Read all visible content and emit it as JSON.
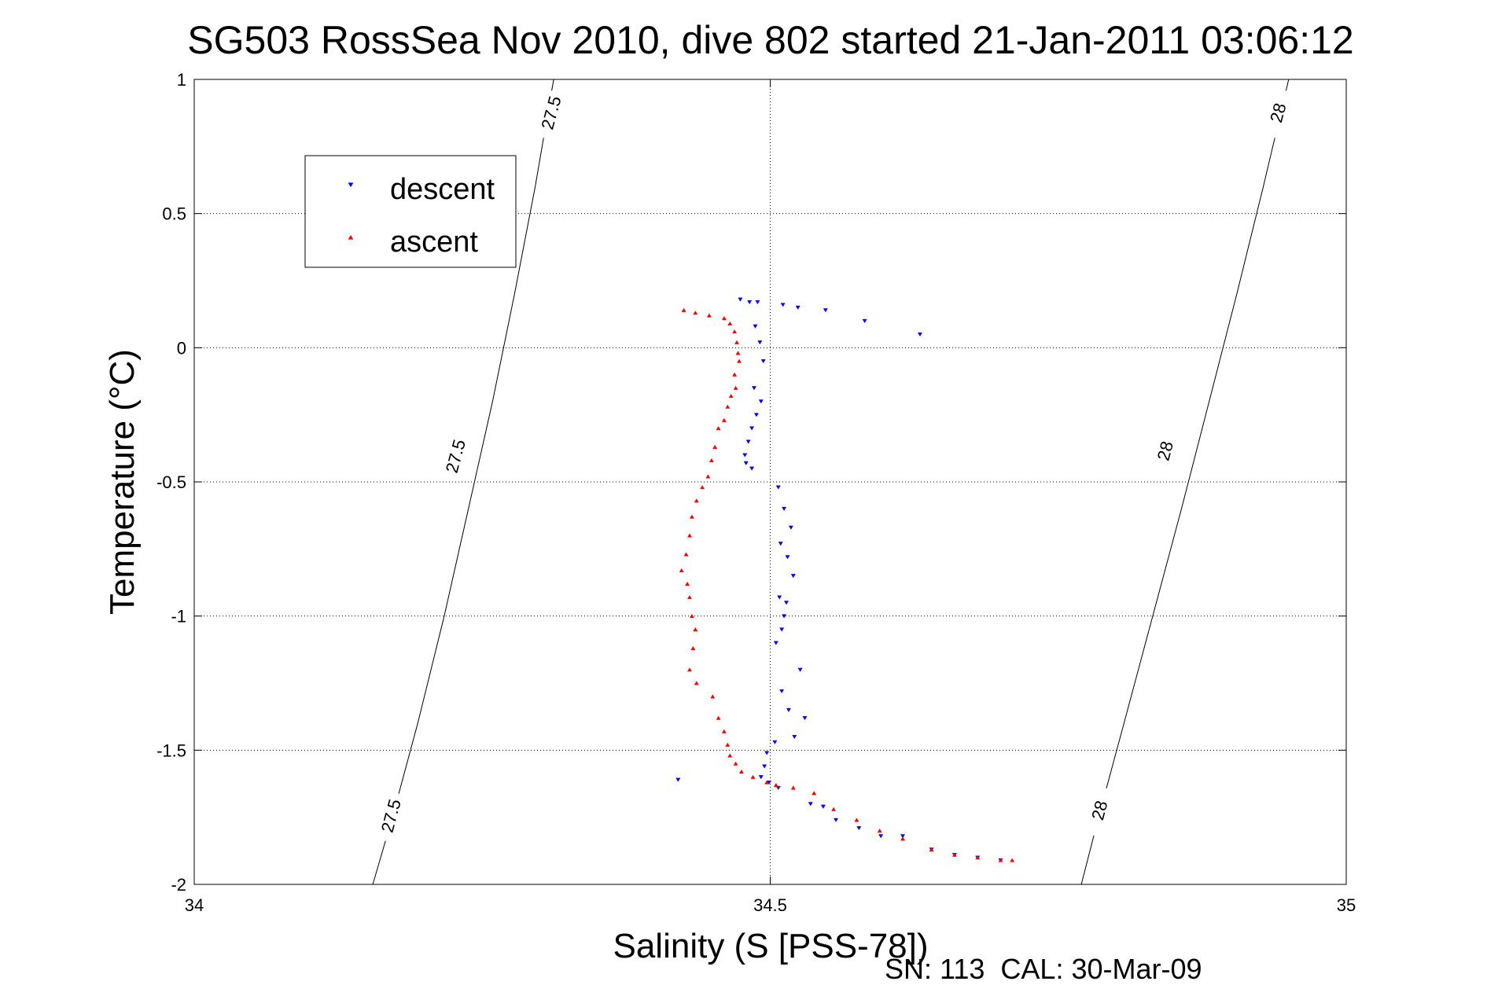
{
  "chart_data": {
    "type": "scatter",
    "title": "SG503 RossSea Nov 2010, dive 802 started 21-Jan-2011 03:06:12",
    "xlabel": "Salinity (S [PSS-78])",
    "ylabel": "Temperature (°C)",
    "footer": "SN: 113  CAL: 30-Mar-09",
    "xlim": [
      34,
      35
    ],
    "ylim": [
      -2,
      1
    ],
    "xticks": [
      34,
      34.5,
      35
    ],
    "xtick_labels": [
      "34",
      "34.5",
      "35"
    ],
    "yticks": [
      -2,
      -1.5,
      -1,
      -0.5,
      0,
      0.5,
      1
    ],
    "ytick_labels": [
      "-2",
      "-1.5",
      "-1",
      "-0.5",
      "0",
      "0.5",
      "1"
    ],
    "grid": true,
    "legend_position": "top-left",
    "isopycnals": [
      {
        "level": "27.5",
        "points": [
          [
            34.155,
            -2.0
          ],
          [
            34.172,
            -1.75
          ],
          [
            34.194,
            -1.4
          ],
          [
            34.217,
            -1.0
          ],
          [
            34.238,
            -0.6
          ],
          [
            34.259,
            -0.2
          ],
          [
            34.278,
            0.2
          ],
          [
            34.296,
            0.6
          ],
          [
            34.312,
            1.0
          ]
        ],
        "labels": [
          [
            34.171,
            -1.75
          ],
          [
            34.227,
            -0.41
          ],
          [
            34.31,
            0.87
          ]
        ]
      },
      {
        "level": "28",
        "points": [
          [
            34.77,
            -2.0
          ],
          [
            34.785,
            -1.75
          ],
          [
            34.807,
            -1.4
          ],
          [
            34.832,
            -1.0
          ],
          [
            34.857,
            -0.6
          ],
          [
            34.881,
            -0.2
          ],
          [
            34.905,
            0.2
          ],
          [
            34.928,
            0.6
          ],
          [
            34.95,
            1.0
          ]
        ],
        "labels": [
          [
            34.786,
            -1.73
          ],
          [
            34.843,
            -0.39
          ],
          [
            34.941,
            0.87
          ]
        ]
      }
    ],
    "series": [
      {
        "name": "descent",
        "color": "#0000ff",
        "marker": "triangle-down",
        "points": [
          [
            34.474,
            0.18
          ],
          [
            34.482,
            0.17
          ],
          [
            34.489,
            0.17
          ],
          [
            34.511,
            0.16
          ],
          [
            34.524,
            0.15
          ],
          [
            34.548,
            0.14
          ],
          [
            34.582,
            0.1
          ],
          [
            34.63,
            0.05
          ],
          [
            34.487,
            0.08
          ],
          [
            34.491,
            0.02
          ],
          [
            34.494,
            -0.05
          ],
          [
            34.486,
            -0.15
          ],
          [
            34.492,
            -0.2
          ],
          [
            34.488,
            -0.25
          ],
          [
            34.484,
            -0.3
          ],
          [
            34.481,
            -0.35
          ],
          [
            34.478,
            -0.4
          ],
          [
            34.479,
            -0.43
          ],
          [
            34.484,
            -0.45
          ],
          [
            34.507,
            -0.52
          ],
          [
            34.512,
            -0.6
          ],
          [
            34.518,
            -0.67
          ],
          [
            34.509,
            -0.73
          ],
          [
            34.515,
            -0.78
          ],
          [
            34.52,
            -0.85
          ],
          [
            34.508,
            -0.93
          ],
          [
            34.514,
            -0.95
          ],
          [
            34.512,
            -1.0
          ],
          [
            34.51,
            -1.05
          ],
          [
            34.505,
            -1.1
          ],
          [
            34.526,
            -1.2
          ],
          [
            34.51,
            -1.28
          ],
          [
            34.516,
            -1.35
          ],
          [
            34.53,
            -1.38
          ],
          [
            34.521,
            -1.45
          ],
          [
            34.504,
            -1.47
          ],
          [
            34.497,
            -1.51
          ],
          [
            34.495,
            -1.56
          ],
          [
            34.492,
            -1.6
          ],
          [
            34.499,
            -1.62
          ],
          [
            34.507,
            -1.64
          ],
          [
            34.42,
            -1.61
          ],
          [
            34.535,
            -1.7
          ],
          [
            34.546,
            -1.71
          ],
          [
            34.557,
            -1.76
          ],
          [
            34.577,
            -1.79
          ],
          [
            34.596,
            -1.82
          ],
          [
            34.615,
            -1.82
          ],
          [
            34.64,
            -1.87
          ],
          [
            34.66,
            -1.89
          ],
          [
            34.68,
            -1.9
          ],
          [
            34.7,
            -1.91
          ]
        ]
      },
      {
        "name": "ascent",
        "color": "#ff0000",
        "marker": "triangle-up",
        "points": [
          [
            34.425,
            0.14
          ],
          [
            34.435,
            0.13
          ],
          [
            34.447,
            0.12
          ],
          [
            34.46,
            0.11
          ],
          [
            34.465,
            0.09
          ],
          [
            34.469,
            0.06
          ],
          [
            34.471,
            0.02
          ],
          [
            34.472,
            -0.02
          ],
          [
            34.473,
            -0.05
          ],
          [
            34.469,
            -0.1
          ],
          [
            34.47,
            -0.15
          ],
          [
            34.466,
            -0.18
          ],
          [
            34.463,
            -0.22
          ],
          [
            34.46,
            -0.27
          ],
          [
            34.455,
            -0.3
          ],
          [
            34.452,
            -0.37
          ],
          [
            34.449,
            -0.42
          ],
          [
            34.446,
            -0.48
          ],
          [
            34.441,
            -0.52
          ],
          [
            34.436,
            -0.57
          ],
          [
            34.432,
            -0.63
          ],
          [
            34.43,
            -0.7
          ],
          [
            34.427,
            -0.77
          ],
          [
            34.423,
            -0.83
          ],
          [
            34.428,
            -0.88
          ],
          [
            34.43,
            -0.93
          ],
          [
            34.432,
            -1.0
          ],
          [
            34.435,
            -1.05
          ],
          [
            34.433,
            -1.12
          ],
          [
            34.43,
            -1.2
          ],
          [
            34.436,
            -1.25
          ],
          [
            34.45,
            -1.3
          ],
          [
            34.455,
            -1.38
          ],
          [
            34.46,
            -1.43
          ],
          [
            34.463,
            -1.48
          ],
          [
            34.465,
            -1.52
          ],
          [
            34.47,
            -1.55
          ],
          [
            34.475,
            -1.58
          ],
          [
            34.485,
            -1.6
          ],
          [
            34.497,
            -1.62
          ],
          [
            34.505,
            -1.63
          ],
          [
            34.52,
            -1.64
          ],
          [
            34.538,
            -1.66
          ],
          [
            34.555,
            -1.72
          ],
          [
            34.575,
            -1.76
          ],
          [
            34.595,
            -1.8
          ],
          [
            34.615,
            -1.83
          ],
          [
            34.64,
            -1.87
          ],
          [
            34.66,
            -1.89
          ],
          [
            34.68,
            -1.9
          ],
          [
            34.7,
            -1.91
          ],
          [
            34.71,
            -1.91
          ]
        ]
      }
    ]
  }
}
